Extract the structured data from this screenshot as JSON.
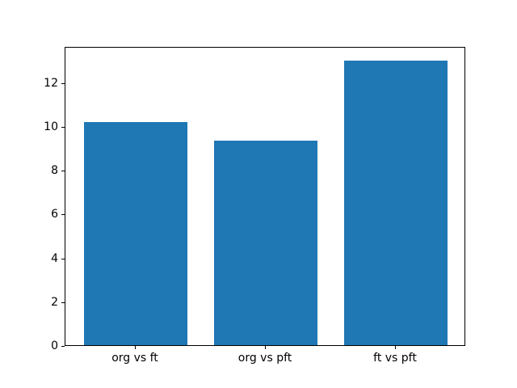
{
  "chart_data": {
    "type": "bar",
    "title": "",
    "xlabel": "",
    "ylabel": "",
    "categories": [
      "org vs ft",
      "org vs pft",
      "ft vs pft"
    ],
    "values": [
      10.2,
      9.35,
      13.0
    ],
    "yticks": [
      0,
      2,
      4,
      6,
      8,
      10,
      12
    ],
    "ylim": [
      0,
      13.65
    ],
    "xlim": [
      -0.54,
      2.54
    ],
    "bar_width_units": 0.8,
    "bar_color": "#1f77b4",
    "background_color": "#ffffff",
    "spine_color": "#000000",
    "tick_color": "#000000",
    "grid": false,
    "legend_position": "none"
  }
}
